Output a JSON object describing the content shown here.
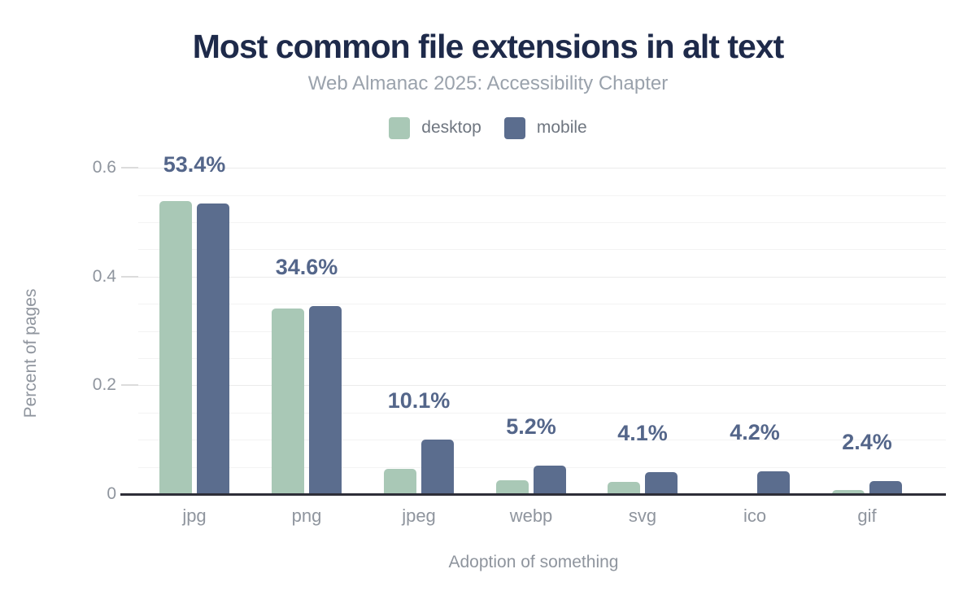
{
  "title": "Most common file extensions in alt text",
  "subtitle": "Web Almanac 2025: Accessibility Chapter",
  "legend": [
    {
      "label": "desktop",
      "color": "#a9c8b6"
    },
    {
      "label": "mobile",
      "color": "#5b6d8e"
    }
  ],
  "chart_data": {
    "type": "bar",
    "title": "Most common file extensions in alt text",
    "subtitle": "Web Almanac 2025: Accessibility Chapter",
    "xlabel": "Adoption of something",
    "ylabel": "Percent of pages",
    "categories": [
      "jpg",
      "png",
      "jpeg",
      "webp",
      "svg",
      "ico",
      "gif"
    ],
    "series": [
      {
        "name": "desktop",
        "color": "#a9c8b6",
        "values": [
          0.539,
          0.341,
          0.047,
          0.026,
          0.023,
          0.0,
          0.008
        ]
      },
      {
        "name": "mobile",
        "color": "#5b6d8e",
        "values": [
          0.534,
          0.346,
          0.101,
          0.052,
          0.041,
          0.042,
          0.024
        ]
      }
    ],
    "data_labels": [
      "53.4%",
      "34.6%",
      "10.1%",
      "5.2%",
      "4.1%",
      "4.2%",
      "2.4%"
    ],
    "data_labels_source": "mobile",
    "ylim": [
      0,
      0.62
    ],
    "yticks": [
      0,
      0.2,
      0.4,
      0.6
    ],
    "ytick_labels": [
      "0",
      "0.2",
      "0.4",
      "0.6"
    ],
    "grid": {
      "orientation": "horizontal",
      "minor_step": 0.05,
      "major_step": 0.2
    },
    "legend_position": "top"
  },
  "colors": {
    "title": "#1e2a4a",
    "subtitle": "#9aa2ac",
    "axis_text": "#8f959e",
    "data_label": "#54668a",
    "desktop_bar": "#a9c8b6",
    "mobile_bar": "#5b6d8e",
    "axis_line": "#2e2e38",
    "grid_minor": "#f3f3f3",
    "grid_major": "#ebebeb",
    "background": "#ffffff"
  }
}
